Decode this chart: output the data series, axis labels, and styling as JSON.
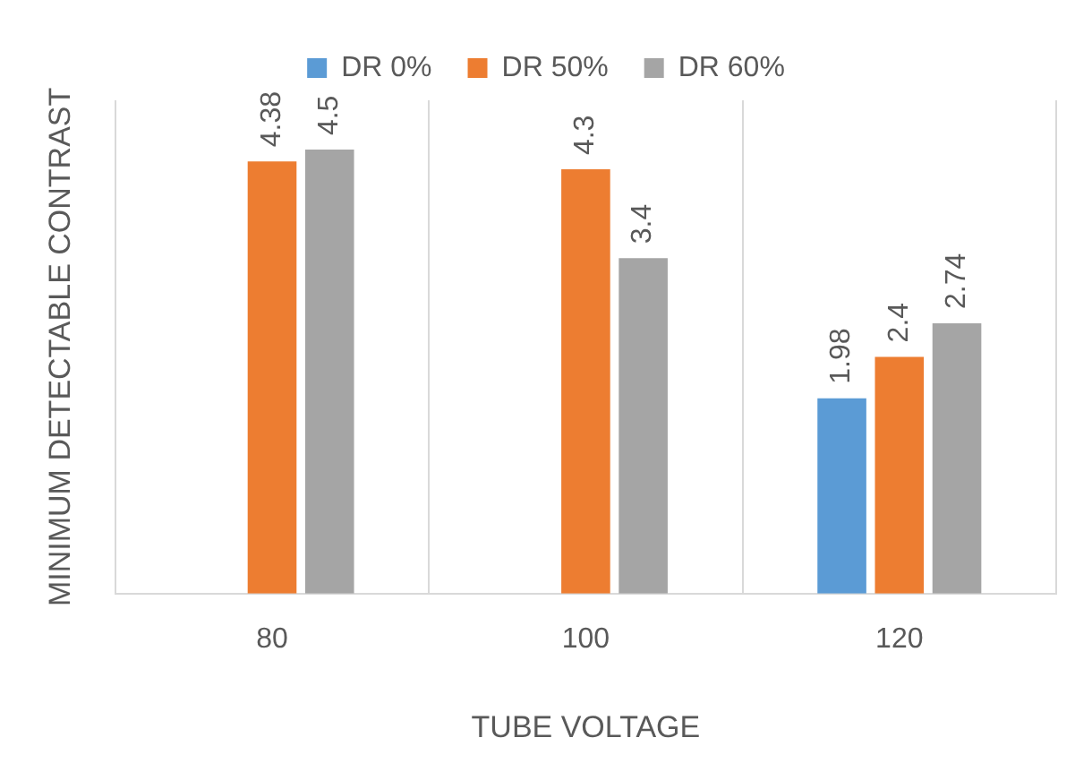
{
  "chart_data": {
    "type": "bar",
    "xlabel": "TUBE VOLTAGE",
    "ylabel": "MINIMUM DETECTABLE CONTRAST",
    "categories": [
      "80",
      "100",
      "120"
    ],
    "series": [
      {
        "name": "DR 0%",
        "color": "#5b9bd5",
        "values": [
          null,
          null,
          1.98
        ]
      },
      {
        "name": "DR 50%",
        "color": "#ed7d31",
        "values": [
          4.38,
          4.3,
          2.4
        ]
      },
      {
        "name": "DR 60%",
        "color": "#a5a5a5",
        "values": [
          4.5,
          3.4,
          2.74
        ]
      }
    ],
    "ylim": [
      0,
      5
    ],
    "grid": "x",
    "legend": "top",
    "data_labels": true
  }
}
